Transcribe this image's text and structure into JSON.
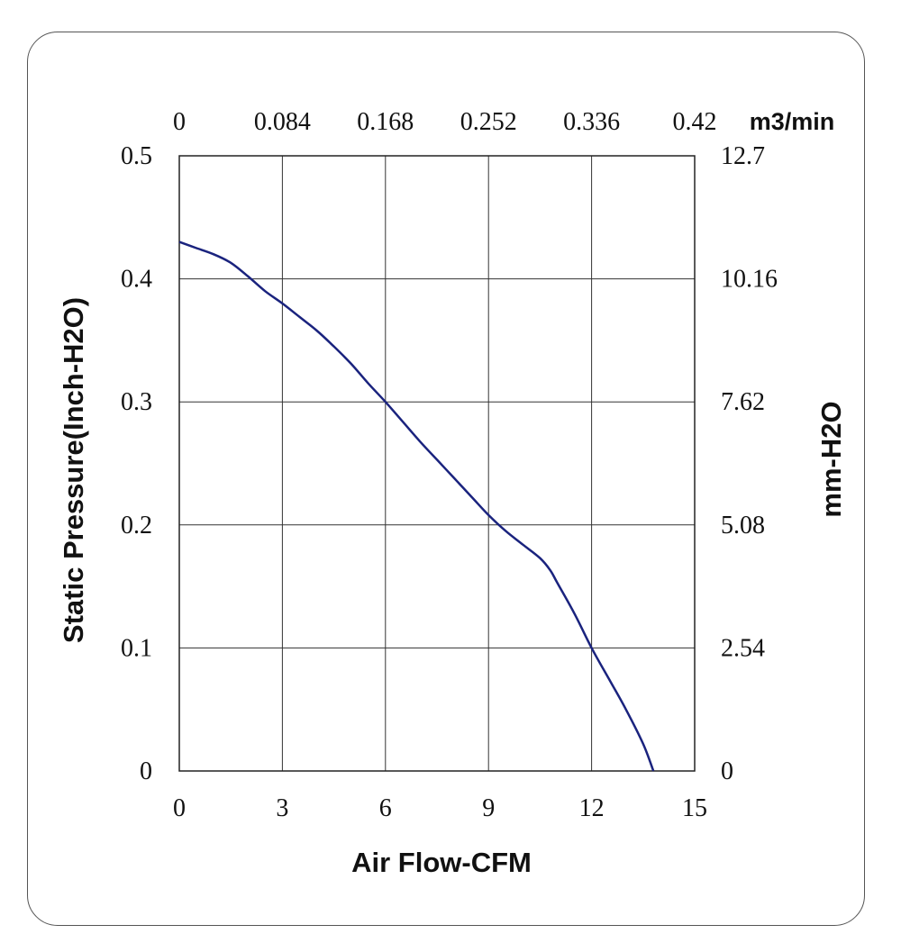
{
  "chart_data": {
    "type": "line",
    "xlabel": "Air Flow-CFM",
    "ylabel": "Static Pressure(Inch-H2O)",
    "xlim": [
      0,
      15
    ],
    "ylim": [
      0,
      0.5
    ],
    "x_ticks": [
      "0",
      "3",
      "6",
      "9",
      "12",
      "15"
    ],
    "y_ticks": [
      "0",
      "0.1",
      "0.2",
      "0.3",
      "0.4",
      "0.5"
    ],
    "top_axis": {
      "label": "m3/min",
      "ticks": [
        "0",
        "0.084",
        "0.168",
        "0.252",
        "0.336",
        "0.42"
      ]
    },
    "right_axis": {
      "label": "mm-H2O",
      "ticks": [
        "0",
        "2.54",
        "5.08",
        "7.62",
        "10.16",
        "12.7"
      ]
    },
    "grid": true,
    "line_color": "#1a237e",
    "series": [
      {
        "x": [
          0,
          0.5,
          1,
          1.5,
          2,
          2.5,
          3,
          3.5,
          4,
          4.5,
          5,
          5.5,
          6,
          6.5,
          7,
          7.5,
          8,
          8.5,
          9,
          9.5,
          10,
          10.5,
          10.8,
          11,
          11.5,
          12,
          12.5,
          13,
          13.5,
          13.8
        ],
        "y": [
          0.43,
          0.425,
          0.42,
          0.413,
          0.402,
          0.39,
          0.38,
          0.369,
          0.358,
          0.345,
          0.331,
          0.315,
          0.3,
          0.284,
          0.268,
          0.253,
          0.238,
          0.223,
          0.208,
          0.195,
          0.184,
          0.173,
          0.163,
          0.153,
          0.128,
          0.1,
          0.075,
          0.05,
          0.022,
          0
        ]
      }
    ]
  }
}
